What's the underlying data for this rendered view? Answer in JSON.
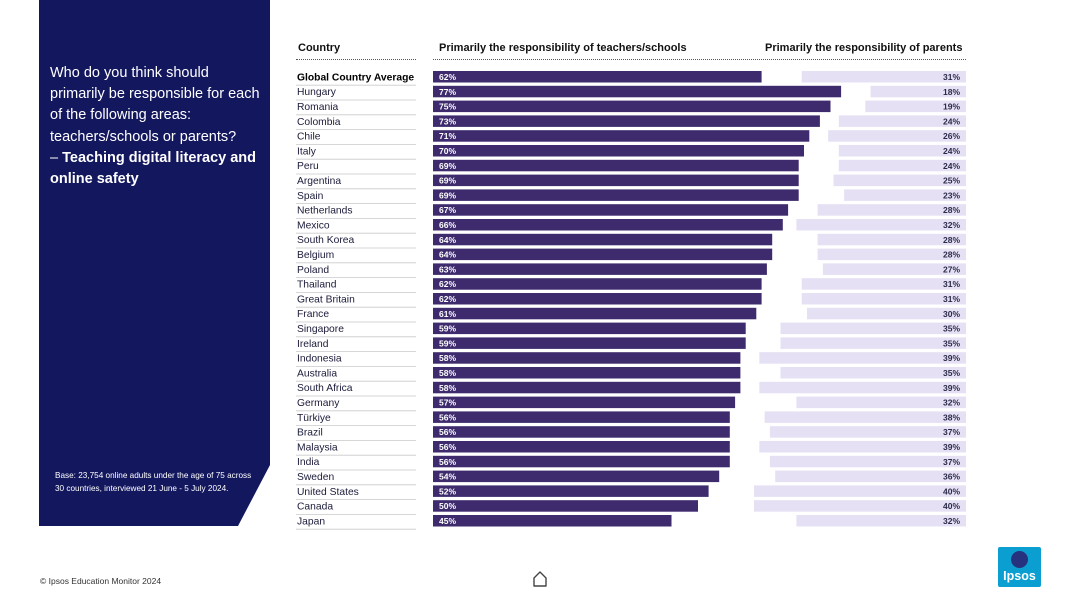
{
  "panel": {
    "question_line": "Who do you think should primarily be responsible for each of the following areas: teachers/schools or parents?",
    "dash": "–",
    "topic": "Teaching digital literacy and online safety",
    "base_note": "Base: 23,754 online adults under the age of 75 across 30 countries, interviewed 21 June - 5 July 2024."
  },
  "headers": {
    "country": "Country",
    "teachers": "Primarily the responsibility of teachers/schools",
    "parents": "Primarily the responsibility of parents"
  },
  "footer": {
    "copyright": "© Ipsos Education Monitor 2024",
    "home_icon": "home-icon",
    "logo_text": "Ipsos"
  },
  "colors": {
    "panel": "#13175e",
    "teachers_bar": "#3d2b6e",
    "parents_bar": "#e6e0f4"
  },
  "chart_data": {
    "type": "bar",
    "orientation": "horizontal",
    "value_suffix": "%",
    "categories": [
      "Global Country Average",
      "Hungary",
      "Romania",
      "Colombia",
      "Chile",
      "Italy",
      "Peru",
      "Argentina",
      "Spain",
      "Netherlands",
      "Mexico",
      "South Korea",
      "Belgium",
      "Poland",
      "Thailand",
      "Great Britain",
      "France",
      "Singapore",
      "Ireland",
      "Indonesia",
      "Australia",
      "South Africa",
      "Germany",
      "Türkiye",
      "Brazil",
      "Malaysia",
      "India",
      "Sweden",
      "United States",
      "Canada",
      "Japan"
    ],
    "series": [
      {
        "name": "Primarily the responsibility of teachers/schools",
        "values": [
          62,
          77,
          75,
          73,
          71,
          70,
          69,
          69,
          69,
          67,
          66,
          64,
          64,
          63,
          62,
          62,
          61,
          59,
          59,
          58,
          58,
          58,
          57,
          56,
          56,
          56,
          56,
          54,
          52,
          50,
          45
        ]
      },
      {
        "name": "Primarily the responsibility of parents",
        "values": [
          31,
          18,
          19,
          24,
          26,
          24,
          24,
          25,
          23,
          28,
          32,
          28,
          28,
          27,
          31,
          31,
          30,
          35,
          35,
          39,
          35,
          39,
          32,
          38,
          37,
          39,
          37,
          36,
          40,
          40,
          32
        ]
      }
    ],
    "xlim": [
      0,
      100
    ]
  }
}
